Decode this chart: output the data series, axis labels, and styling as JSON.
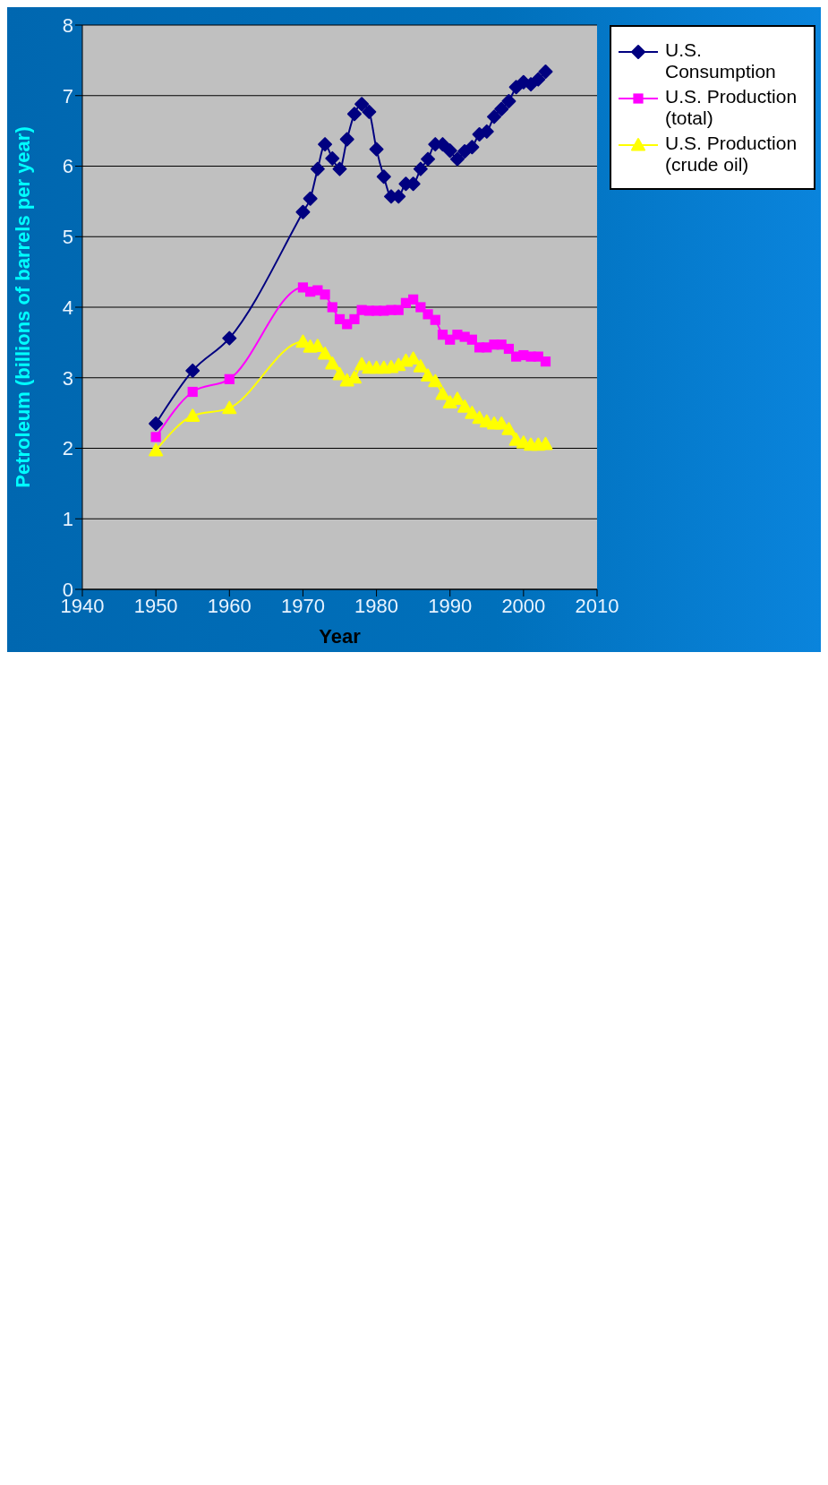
{
  "chart_data": {
    "type": "line",
    "xlabel": "Year",
    "ylabel": "Petroleum (billions of barrels per year)",
    "x": [
      1950,
      1955,
      1960,
      1970,
      1971,
      1972,
      1973,
      1974,
      1975,
      1976,
      1977,
      1978,
      1979,
      1980,
      1981,
      1982,
      1983,
      1984,
      1985,
      1986,
      1987,
      1988,
      1989,
      1990,
      1991,
      1992,
      1993,
      1994,
      1995,
      1996,
      1997,
      1998,
      1999,
      2000,
      2001,
      2002,
      2003
    ],
    "series": [
      {
        "name": "U.S. Consumption",
        "color": "#000080",
        "marker": "diamond",
        "values": [
          2.35,
          3.1,
          3.56,
          5.35,
          5.54,
          5.96,
          6.31,
          6.11,
          5.96,
          6.38,
          6.74,
          6.88,
          6.77,
          6.24,
          5.85,
          5.57,
          5.57,
          5.75,
          5.75,
          5.96,
          6.1,
          6.31,
          6.31,
          6.22,
          6.1,
          6.21,
          6.27,
          6.45,
          6.49,
          6.7,
          6.81,
          6.92,
          7.12,
          7.19,
          7.16,
          7.23,
          7.34
        ]
      },
      {
        "name": "U.S. Production (total)",
        "color": "#ff00ff",
        "marker": "square",
        "values": [
          2.16,
          2.8,
          2.98,
          4.28,
          4.22,
          4.24,
          4.18,
          4.0,
          3.83,
          3.76,
          3.83,
          3.96,
          3.95,
          3.95,
          3.95,
          3.96,
          3.96,
          4.06,
          4.11,
          4.0,
          3.9,
          3.82,
          3.61,
          3.54,
          3.61,
          3.58,
          3.54,
          3.43,
          3.43,
          3.47,
          3.47,
          3.41,
          3.3,
          3.32,
          3.3,
          3.3,
          3.23
        ]
      },
      {
        "name": "U.S. Production (crude oil)",
        "color": "#ffff00",
        "marker": "triangle",
        "values": [
          1.97,
          2.46,
          2.57,
          3.51,
          3.44,
          3.45,
          3.34,
          3.2,
          3.05,
          2.96,
          3.0,
          3.19,
          3.14,
          3.14,
          3.14,
          3.15,
          3.18,
          3.24,
          3.27,
          3.16,
          3.03,
          2.95,
          2.77,
          2.65,
          2.7,
          2.59,
          2.5,
          2.43,
          2.38,
          2.35,
          2.35,
          2.27,
          2.12,
          2.08,
          2.05,
          2.05,
          2.06
        ]
      }
    ],
    "xlim": [
      1940,
      2010
    ],
    "xticks": [
      1940,
      1950,
      1960,
      1970,
      1980,
      1990,
      2000,
      2010
    ],
    "ylim": [
      0,
      8
    ],
    "yticks": [
      0,
      1,
      2,
      3,
      4,
      5,
      6,
      7,
      8
    ],
    "grid": "y",
    "legend": "right"
  }
}
